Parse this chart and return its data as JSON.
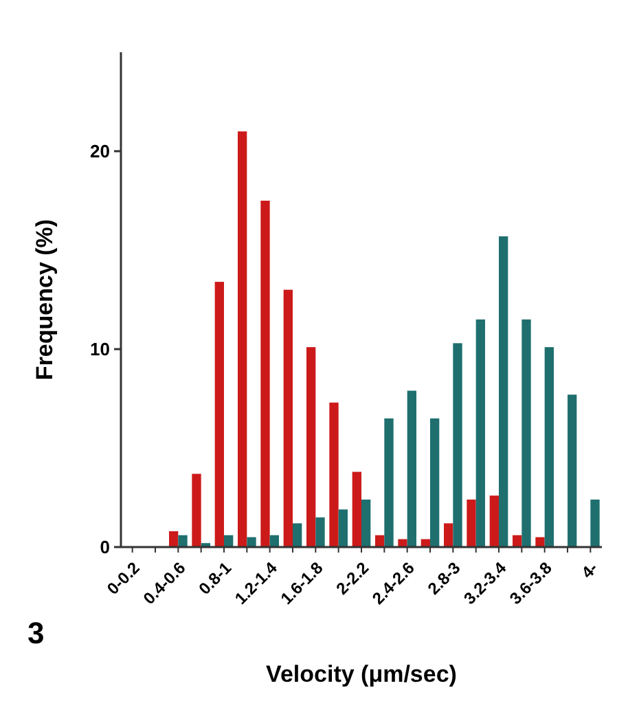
{
  "chart_data": {
    "type": "bar",
    "xlabel": "Velocity (μm/sec)",
    "ylabel": "Frequency (%)",
    "annotations": [
      "3"
    ],
    "categories": [
      "0-0.2",
      null,
      "0.4-0.6",
      null,
      "0.8-1",
      null,
      "1.2-1.4",
      null,
      "1.6-1.8",
      null,
      "2-2.2",
      null,
      "2.4-2.6",
      null,
      "2.8-3",
      null,
      "3.2-3.4",
      null,
      "3.6-3.8",
      null,
      "4-"
    ],
    "series": [
      {
        "color": "#cc1a1a",
        "values": [
          0,
          0,
          0.8,
          3.7,
          13.4,
          21.0,
          17.5,
          13.0,
          10.1,
          7.3,
          3.8,
          0.6,
          0.4,
          0.4,
          1.2,
          2.4,
          2.6,
          0.6,
          0.5,
          0,
          0
        ]
      },
      {
        "color": "#1f6f6f",
        "values": [
          0,
          0,
          0.6,
          0.2,
          0.6,
          0.5,
          0.6,
          1.2,
          1.5,
          1.9,
          2.4,
          6.5,
          7.9,
          6.5,
          10.3,
          11.5,
          15.7,
          11.5,
          10.1,
          7.7,
          2.4
        ]
      }
    ],
    "ylim": [
      0,
      25
    ],
    "yticks": [
      0,
      10,
      20
    ]
  }
}
